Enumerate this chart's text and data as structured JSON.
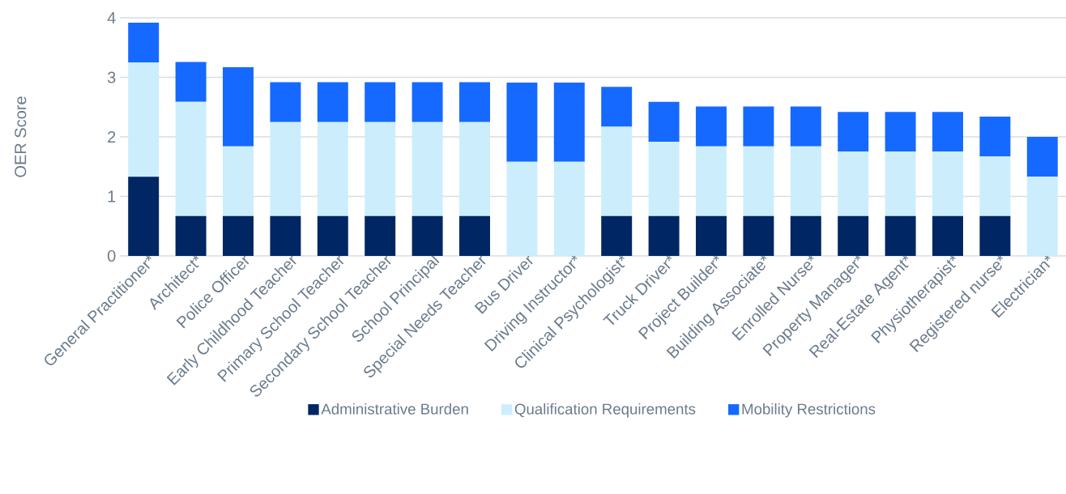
{
  "chart_data": {
    "type": "bar",
    "stacked": true,
    "ylabel": "OER Score",
    "categories": [
      "General Practitioner*",
      "Architect*",
      "Police Officer",
      "Early Childhood Teacher",
      "Primary School Teacher",
      "Secondary School Teacher",
      "School Principal",
      "Special Needs Teacher",
      "Bus Driver",
      "Driving Instructor*",
      "Clinical Psychologist*",
      "Truck Driver*",
      "Project Builder*",
      "Building Associate*",
      "Enrolled Nurse*",
      "Property Manager*",
      "Real-Estate Agent*",
      "Physiotherapist*",
      "Registered nurse*",
      "Electrician*"
    ],
    "series": [
      {
        "name": "Administrative Burden",
        "color": "#002664",
        "values": [
          1.33,
          0.67,
          0.67,
          0.67,
          0.67,
          0.67,
          0.67,
          0.67,
          0,
          0,
          0.67,
          0.67,
          0.67,
          0.67,
          0.67,
          0.67,
          0.67,
          0.67,
          0.67,
          0
        ]
      },
      {
        "name": "Qualification Requirements",
        "color": "#cceefc",
        "values": [
          1.92,
          1.92,
          1.17,
          1.58,
          1.58,
          1.58,
          1.58,
          1.58,
          1.58,
          1.58,
          1.5,
          1.25,
          1.17,
          1.17,
          1.17,
          1.08,
          1.08,
          1.08,
          1.0,
          1.33
        ]
      },
      {
        "name": "Mobility Restrictions",
        "color": "#1569ff",
        "values": [
          0.67,
          0.67,
          1.33,
          0.67,
          0.67,
          0.67,
          0.67,
          0.67,
          1.33,
          1.33,
          0.67,
          0.67,
          0.67,
          0.67,
          0.67,
          0.67,
          0.67,
          0.67,
          0.67,
          0.67
        ]
      }
    ],
    "ylim": [
      0,
      4
    ],
    "yticks": [
      0,
      1,
      2,
      3,
      4
    ],
    "grid": "y",
    "legend": "bottom"
  }
}
